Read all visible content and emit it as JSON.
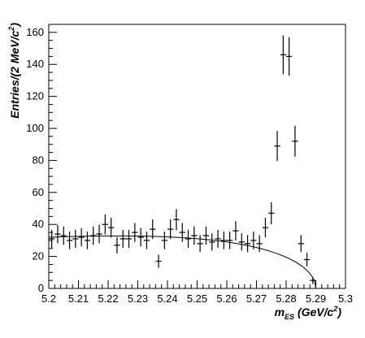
{
  "chart_data": {
    "type": "scatter",
    "title": "",
    "xlabel": {
      "main": "m",
      "subscript": "ES",
      "unit_open": " (GeV/c",
      "unit_sup": "2",
      "unit_close": ")"
    },
    "ylabel": {
      "main": "Entries/(2 MeV/c",
      "sup": "2",
      "close": ")"
    },
    "xlim": [
      5.2,
      5.3
    ],
    "ylim": [
      0,
      165
    ],
    "x_ticks": [
      5.2,
      5.21,
      5.22,
      5.23,
      5.24,
      5.25,
      5.26,
      5.27,
      5.28,
      5.29,
      5.3
    ],
    "x_tick_labels": [
      "5.2",
      "5.21",
      "5.22",
      "5.23",
      "5.24",
      "5.25",
      "5.26",
      "5.27",
      "5.28",
      "5.29",
      "5.3"
    ],
    "y_ticks": [
      0,
      20,
      40,
      60,
      80,
      100,
      120,
      140,
      160
    ],
    "y_tick_labels": [
      "0",
      "20",
      "40",
      "60",
      "80",
      "100",
      "120",
      "140",
      "160"
    ],
    "grid": false,
    "legend": "none",
    "bin_width": 0.002,
    "series": [
      {
        "kind": "histogram-points",
        "x": [
          5.201,
          5.203,
          5.205,
          5.207,
          5.209,
          5.211,
          5.213,
          5.215,
          5.217,
          5.219,
          5.221,
          5.223,
          5.225,
          5.227,
          5.229,
          5.231,
          5.233,
          5.235,
          5.237,
          5.239,
          5.241,
          5.243,
          5.245,
          5.247,
          5.249,
          5.251,
          5.253,
          5.255,
          5.257,
          5.259,
          5.261,
          5.263,
          5.265,
          5.267,
          5.269,
          5.271,
          5.273,
          5.275,
          5.277,
          5.279,
          5.281,
          5.283,
          5.285,
          5.287,
          5.289
        ],
        "y": [
          31,
          34,
          33,
          30,
          31,
          32,
          30,
          33,
          34,
          40,
          38,
          27,
          31,
          31,
          35,
          32,
          30,
          37,
          17,
          30,
          37,
          43,
          35,
          31,
          33,
          28,
          33,
          29,
          31,
          30,
          30,
          36,
          29,
          28,
          30,
          28,
          38,
          47,
          89,
          146,
          145,
          92,
          28,
          18,
          5
        ],
        "yerr": [
          5.6,
          5.8,
          5.7,
          5.5,
          5.6,
          5.7,
          5.5,
          5.7,
          5.8,
          6.3,
          6.2,
          5.2,
          5.6,
          5.6,
          5.9,
          5.7,
          5.5,
          6.1,
          4.1,
          5.5,
          6.1,
          6.6,
          5.9,
          5.6,
          5.7,
          5.3,
          5.7,
          5.4,
          5.6,
          5.5,
          5.5,
          6.0,
          5.4,
          5.3,
          5.5,
          5.3,
          6.2,
          6.9,
          9.4,
          12.1,
          12.0,
          9.6,
          5.3,
          4.2,
          2.2
        ]
      },
      {
        "kind": "fit-curve",
        "function": "argus",
        "endpoint": 5.29,
        "norm": 32,
        "shape": 20
      }
    ]
  },
  "colors": {
    "axis": "#000000",
    "points": "#000000",
    "curve": "#000000",
    "background": "#ffffff"
  }
}
